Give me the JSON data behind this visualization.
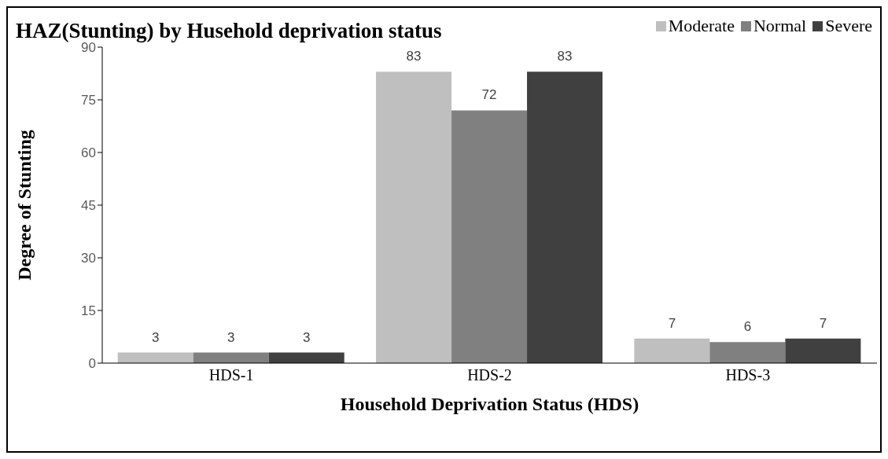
{
  "chart_data": {
    "type": "bar",
    "title": "HAZ(Stunting) by Husehold deprivation status",
    "xlabel": "Household Deprivation Status (HDS)",
    "ylabel": "Degree of Stunting",
    "categories": [
      "HDS-1",
      "HDS-2",
      "HDS-3"
    ],
    "series": [
      {
        "name": "Moderate",
        "color": "#bfbfbf",
        "values": [
          3,
          83,
          7
        ]
      },
      {
        "name": "Normal",
        "color": "#808080",
        "values": [
          3,
          72,
          6
        ]
      },
      {
        "name": "Severe",
        "color": "#404040",
        "values": [
          3,
          83,
          7
        ]
      }
    ],
    "ylim": [
      0,
      90
    ],
    "yticks": [
      0,
      15,
      30,
      45,
      60,
      75,
      90
    ],
    "grid": false,
    "legend": "top right",
    "data_labels": true
  }
}
